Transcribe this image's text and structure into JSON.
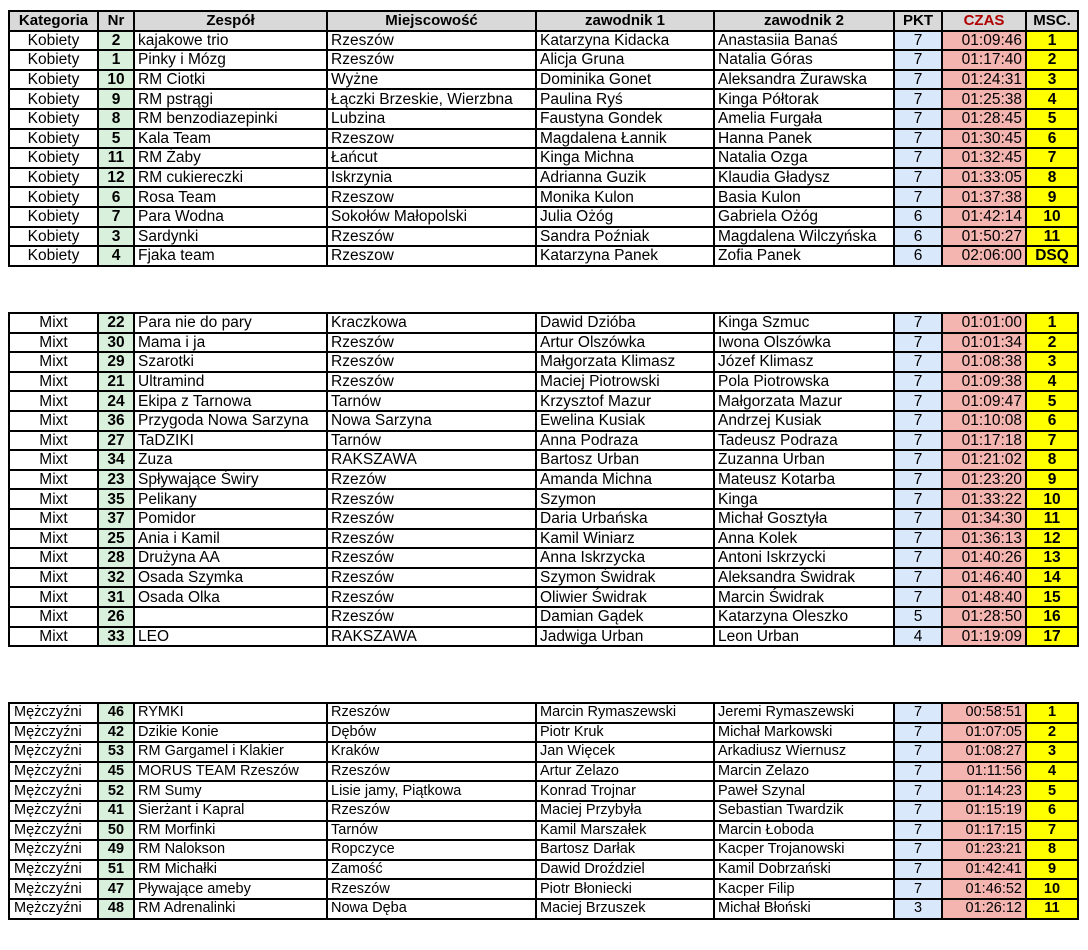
{
  "headers": {
    "kategoria": "Kategoria",
    "nr": "Nr",
    "zespol": "Zespół",
    "miejscowosc": "Miejscowość",
    "zawodnik1": "zawodnik 1",
    "zawodnik2": "zawodnik 2",
    "pkt": "PKT",
    "czas": "CZAS",
    "msc": "MSC."
  },
  "colors": {
    "header": "#d9d9d9",
    "pkt_header": "#4a86e8",
    "czas_header": "#ff0000",
    "msc_header": "#ffa500",
    "nr_cell": "#d9f0dc",
    "pkt_cell": "#dae8fc",
    "czas_cell": "#f4b5b0",
    "msc_cell": "#ffff00"
  },
  "sections": [
    {
      "rows": [
        [
          "Kobiety",
          "2",
          "kajakowe trio",
          "Rzeszów",
          "Katarzyna Kidacka",
          "Anastasiia Banaś",
          "7",
          "01:09:46",
          "1"
        ],
        [
          "Kobiety",
          "1",
          "Pinky i Mózg",
          "Rzeszów",
          "Alicja Gruna",
          "Natalia Góras",
          "7",
          "01:17:40",
          "2"
        ],
        [
          "Kobiety",
          "10",
          "RM Ciotki",
          "Wyżne",
          "Dominika Gonet",
          "Aleksandra Żurawska",
          "7",
          "01:24:31",
          "3"
        ],
        [
          "Kobiety",
          "9",
          "RM pstrągi",
          "Łączki Brzeskie, Wierzbna",
          "Paulina Ryś",
          "Kinga Półtorak",
          "7",
          "01:25:38",
          "4"
        ],
        [
          "Kobiety",
          "8",
          "RM benzodiazepinki",
          "Lubzina",
          "Faustyna Gondek",
          "Amelia Furgała",
          "7",
          "01:28:45",
          "5"
        ],
        [
          "Kobiety",
          "5",
          "Kala Team",
          "Rzeszow",
          "Magdalena Łannik",
          "Hanna Panek",
          "7",
          "01:30:45",
          "6"
        ],
        [
          "Kobiety",
          "11",
          "RM Żaby",
          "Łańcut",
          "Kinga Michna",
          "Natalia Ozga",
          "7",
          "01:32:45",
          "7"
        ],
        [
          "Kobiety",
          "12",
          "RM cukiereczki",
          "Iskrzynia",
          "Adrianna Guzik",
          "Klaudia Gładysz",
          "7",
          "01:33:05",
          "8"
        ],
        [
          "Kobiety",
          "6",
          "Rosa Team",
          "Rzeszow",
          "Monika Kulon",
          "Basia Kulon",
          "7",
          "01:37:38",
          "9"
        ],
        [
          "Kobiety",
          "7",
          "Para Wodna",
          "Sokołów Małopolski",
          "Julia Ożóg",
          "Gabriela Ożóg",
          "6",
          "01:42:14",
          "10"
        ],
        [
          "Kobiety",
          "3",
          "Sardynki",
          "Rzeszów",
          "Sandra Poźniak",
          "Magdalena Wilczyńska",
          "6",
          "01:50:27",
          "11"
        ],
        [
          "Kobiety",
          "4",
          "Fjaka team",
          "Rzeszow",
          "Katarzyna Panek",
          "Zofia Panek",
          "6",
          "02:06:00",
          "DSQ"
        ]
      ]
    },
    {
      "rows": [
        [
          "Mixt",
          "22",
          "Para nie do pary",
          "Kraczkowa",
          "Dawid Dzióba",
          "Kinga Szmuc",
          "7",
          "01:01:00",
          "1"
        ],
        [
          "Mixt",
          "30",
          "Mama i ja",
          "Rzeszów",
          "Artur Olszówka",
          "Iwona Olszówka",
          "7",
          "01:01:34",
          "2"
        ],
        [
          "Mixt",
          "29",
          "Szarotki",
          "Rzeszów",
          "Małgorzata Klimasz",
          "Józef Klimasz",
          "7",
          "01:08:38",
          "3"
        ],
        [
          "Mixt",
          "21",
          "Ultramind",
          "Rzeszów",
          "Maciej Piotrowski",
          "Pola Piotrowska",
          "7",
          "01:09:38",
          "4"
        ],
        [
          "Mixt",
          "24",
          "Ekipa z Tarnowa",
          "Tarnów",
          "Krzysztof Mazur",
          "Małgorzata Mazur",
          "7",
          "01:09:47",
          "5"
        ],
        [
          "Mixt",
          "36",
          "Przygoda Nowa Sarzyna",
          "Nowa Sarzyna",
          "Ewelina Kusiak",
          "Andrzej Kusiak",
          "7",
          "01:10:08",
          "6"
        ],
        [
          "Mixt",
          "27",
          "TaDZIKI",
          "Tarnów",
          "Anna Podraza",
          "Tadeusz Podraza",
          "7",
          "01:17:18",
          "7"
        ],
        [
          "Mixt",
          "34",
          "Zuza",
          "RAKSZAWA",
          "Bartosz Urban",
          "Zuzanna Urban",
          "7",
          "01:21:02",
          "8"
        ],
        [
          "Mixt",
          "23",
          "Spływające Świry",
          "Rzezów",
          "Amanda Michna",
          "Mateusz Kotarba",
          "7",
          "01:23:20",
          "9"
        ],
        [
          "Mixt",
          "35",
          "Pelikany",
          "Rzeszów",
          "Szymon",
          "Kinga",
          "7",
          "01:33:22",
          "10"
        ],
        [
          "Mixt",
          "37",
          "Pomidor",
          "Rzeszów",
          "Daria Urbańska",
          "Michał Gosztyła",
          "7",
          "01:34:30",
          "11"
        ],
        [
          "Mixt",
          "25",
          "Ania i Kamil",
          "Rzeszów",
          "Kamil Winiarz",
          "Anna Kolek",
          "7",
          "01:36:13",
          "12"
        ],
        [
          "Mixt",
          "28",
          "Drużyna AA",
          "Rzeszów",
          "Anna Iskrzycka",
          "Antoni Iskrzycki",
          "7",
          "01:40:26",
          "13"
        ],
        [
          "Mixt",
          "32",
          "Osada Szymka",
          "Rzeszów",
          "Szymon Świdrak",
          "Aleksandra Świdrak",
          "7",
          "01:46:40",
          "14"
        ],
        [
          "Mixt",
          "31",
          "Osada Olka",
          "Rzeszów",
          "Oliwier Świdrak",
          "Marcin Świdrak",
          "7",
          "01:48:40",
          "15"
        ],
        [
          "Mixt",
          "26",
          "",
          "Rzeszów",
          "Damian Gądek",
          "Katarzyna Oleszko",
          "5",
          "01:28:50",
          "16"
        ],
        [
          "Mixt",
          "33",
          "LEO",
          "RAKSZAWA",
          "Jadwiga Urban",
          "Leon Urban",
          "4",
          "01:19:09",
          "17"
        ]
      ]
    },
    {
      "rows": [
        [
          "Mężczyźni",
          "46",
          "RYMKI",
          "Rzeszów",
          "Marcin Rymaszewski",
          "Jeremi Rymaszewski",
          "7",
          "00:58:51",
          "1"
        ],
        [
          "Mężczyźni",
          "42",
          "Dzikie Konie",
          "Dębów",
          "Piotr Kruk",
          "Michał Markowski",
          "7",
          "01:07:05",
          "2"
        ],
        [
          "Mężczyźni",
          "53",
          "RM Gargamel i Klakier",
          "Kraków",
          "Jan Więcek",
          "Arkadiusz Wiernusz",
          "7",
          "01:08:27",
          "3"
        ],
        [
          "Mężczyźni",
          "45",
          "MORUS TEAM Rzeszów",
          "Rzeszów",
          "Artur Żelazo",
          "Marcin Żelazo",
          "7",
          "01:11:56",
          "4"
        ],
        [
          "Mężczyźni",
          "52",
          "RM Sumy",
          "Lisie jamy, Piątkowa",
          "Konrad Trojnar",
          "Paweł Szynal",
          "7",
          "01:14:23",
          "5"
        ],
        [
          "Mężczyźni",
          "41",
          "Sierżant i Kapral",
          "Rzeszów",
          "Maciej Przybyła",
          "Sebastian Twardzik",
          "7",
          "01:15:19",
          "6"
        ],
        [
          "Mężczyźni",
          "50",
          "RM Morfinki",
          "Tarnów",
          "Kamil Marszałek",
          "Marcin Łoboda",
          "7",
          "01:17:15",
          "7"
        ],
        [
          "Mężczyźni",
          "49",
          "RM Nalokson",
          "Ropczyce",
          "Bartosz Darłak",
          "Kacper Trojanowski",
          "7",
          "01:23:21",
          "8"
        ],
        [
          "Mężczyźni",
          "51",
          "RM Michałki",
          "Zamość",
          "Dawid Droździel",
          "Kamil Dobrzański",
          "7",
          "01:42:41",
          "9"
        ],
        [
          "Mężczyźni",
          "47",
          "Pływające ameby",
          "Rzeszów",
          "Piotr Błoniecki",
          "Kacper Filip",
          "7",
          "01:46:52",
          "10"
        ],
        [
          "Mężczyźni",
          "48",
          "RM Adrenalinki",
          "Nowa Dęba",
          "Maciej Brzuszek",
          "Michał Błoński",
          "3",
          "01:26:12",
          "11"
        ]
      ]
    }
  ]
}
